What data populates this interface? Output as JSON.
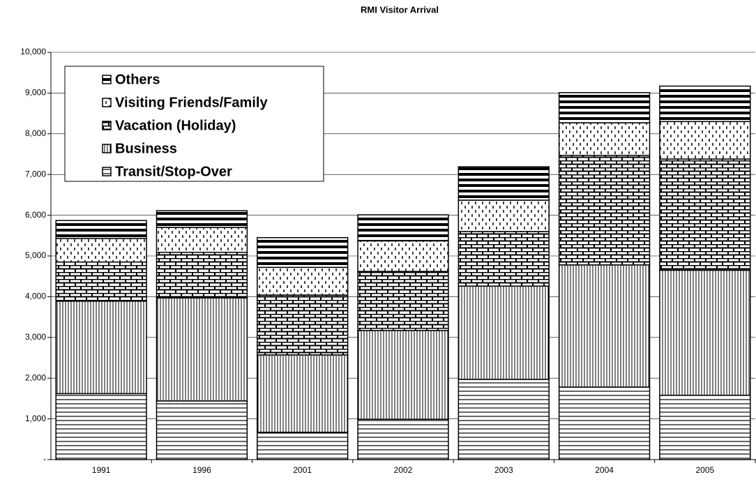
{
  "chart_data": {
    "type": "stacked-bar",
    "title": "RMI Visitor Arrival",
    "categories": [
      "1991",
      "1996",
      "2001",
      "2002",
      "2003",
      "2004",
      "2005"
    ],
    "series": [
      {
        "name": "Transit/Stop-Over",
        "color": "#000000",
        "pattern": "horizontal",
        "values": [
          1620,
          1440,
          670,
          990,
          1970,
          1780,
          1580
        ]
      },
      {
        "name": "Business",
        "color": "#000000",
        "pattern": "vertical",
        "values": [
          2270,
          2530,
          1900,
          2180,
          2290,
          3000,
          3070
        ]
      },
      {
        "name": "Vacation (Holiday)",
        "color": "#000000",
        "pattern": "brick",
        "values": [
          960,
          1120,
          1470,
          1450,
          1340,
          2690,
          2730
        ]
      },
      {
        "name": "Visiting Friends/Family",
        "color": "#000000",
        "pattern": "dashed-vertical",
        "values": [
          580,
          610,
          680,
          750,
          770,
          800,
          920
        ]
      },
      {
        "name": "Others",
        "color": "#000000",
        "pattern": "thick-horizontal",
        "values": [
          440,
          410,
          730,
          640,
          820,
          740,
          870
        ]
      }
    ],
    "ylim": [
      0,
      10000
    ],
    "yticks": [
      {
        "value": 0,
        "label": "-"
      },
      {
        "value": 1000,
        "label": "1,000"
      },
      {
        "value": 2000,
        "label": "2,000"
      },
      {
        "value": 3000,
        "label": "3,000"
      },
      {
        "value": 4000,
        "label": "4,000"
      },
      {
        "value": 5000,
        "label": "5,000"
      },
      {
        "value": 6000,
        "label": "6,000"
      },
      {
        "value": 7000,
        "label": "7,000"
      },
      {
        "value": 8000,
        "label": "8,000"
      },
      {
        "value": 9000,
        "label": "9,000"
      },
      {
        "value": 10000,
        "label": "10,000"
      }
    ],
    "grid": true,
    "legend": "upper-left"
  }
}
